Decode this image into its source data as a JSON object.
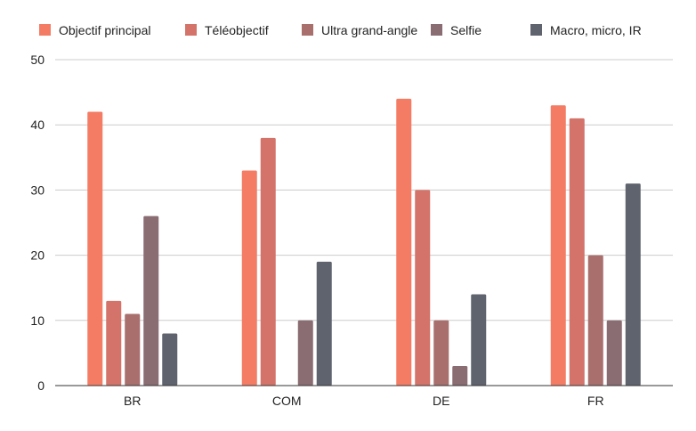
{
  "chart_data": {
    "type": "bar",
    "title": "",
    "xlabel": "",
    "ylabel": "",
    "categories": [
      "BR",
      "COM",
      "DE",
      "FR"
    ],
    "ylim": [
      0,
      50
    ],
    "yticks": [
      0,
      10,
      20,
      30,
      40,
      50
    ],
    "grid": true,
    "legend_position": "top",
    "series": [
      {
        "name": "Objectif principal",
        "color": "#f47c65",
        "values": [
          42,
          33,
          44,
          43
        ]
      },
      {
        "name": "Téléobjectif",
        "color": "#d4736a",
        "values": [
          13,
          38,
          30,
          41
        ]
      },
      {
        "name": "Ultra grand-angle",
        "color": "#a86f6d",
        "values": [
          11,
          0,
          10,
          20
        ]
      },
      {
        "name": "Selfie",
        "color": "#8a6c73",
        "values": [
          26,
          10,
          3,
          10
        ]
      },
      {
        "name": "Macro, micro, IR",
        "color": "#5f636e",
        "values": [
          8,
          19,
          14,
          31
        ]
      }
    ]
  }
}
